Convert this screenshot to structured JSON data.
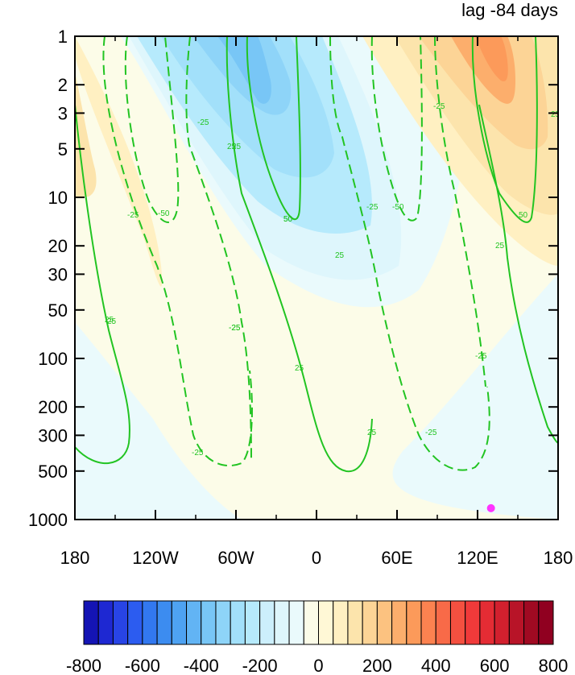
{
  "chart_data": {
    "type": "heatmap",
    "title": "lag -84 days",
    "x_axis": {
      "range": [
        -180,
        180
      ],
      "ticks": [
        -180,
        -120,
        -60,
        0,
        60,
        120,
        180
      ],
      "tick_labels": [
        "180",
        "120W",
        "60W",
        "0",
        "60E",
        "120E",
        "180"
      ]
    },
    "y_axis": {
      "scale": "log",
      "reversed": true,
      "range": [
        1,
        1000
      ],
      "ticks": [
        1,
        2,
        3,
        5,
        10,
        20,
        30,
        50,
        100,
        200,
        300,
        500,
        1000
      ],
      "tick_labels": [
        "1",
        "2",
        "3",
        "5",
        "10",
        "20",
        "30",
        "50",
        "100",
        "200",
        "300",
        "500",
        "1000"
      ]
    },
    "colorbar": {
      "orientation": "horizontal",
      "levels": [
        -800,
        -750,
        -700,
        -650,
        -600,
        -550,
        -500,
        -450,
        -400,
        -350,
        -300,
        -250,
        -200,
        -150,
        -100,
        -50,
        0,
        50,
        100,
        150,
        200,
        250,
        300,
        350,
        400,
        450,
        500,
        550,
        600,
        650,
        700,
        750,
        800
      ],
      "tick_values": [
        -800,
        -600,
        -400,
        -200,
        0,
        200,
        400,
        600,
        800
      ],
      "tick_labels": [
        "-800",
        "-600",
        "-400",
        "-200",
        "0",
        "200",
        "400",
        "600",
        "800"
      ],
      "colors": [
        "#1414b4",
        "#1e28d2",
        "#2844e6",
        "#2c5cf0",
        "#3278f0",
        "#3c8cf0",
        "#4ea2f2",
        "#62b4f4",
        "#78c6f6",
        "#8ed4f8",
        "#a2e0fa",
        "#b6eafc",
        "#cceffc",
        "#def6fc",
        "#eafafc",
        "#fcfce8",
        "#fff8d6",
        "#fff0c2",
        "#fce4ac",
        "#fcd496",
        "#fcc280",
        "#fcae6c",
        "#fc9a5a",
        "#fc8250",
        "#f86a48",
        "#f45040",
        "#f03a3a",
        "#e42c34",
        "#d2202e",
        "#b81428",
        "#a00a22",
        "#900020"
      ]
    },
    "shaded_field": {
      "description_units": "geopotential height anomaly",
      "regions": [
        {
          "value": 25,
          "lon": [
            -180,
            180
          ],
          "p": [
            1000,
            1
          ]
        },
        {
          "value": -25,
          "lon": [
            -180,
            -120
          ],
          "p": [
            1000,
            80
          ]
        },
        {
          "value": -25,
          "lon": [
            -20,
            180
          ],
          "p": [
            1000,
            150
          ]
        },
        {
          "value": 125,
          "lon": [
            -180,
            -110
          ],
          "p": [
            40,
            1
          ]
        },
        {
          "value": -150,
          "lon": [
            -140,
            60
          ],
          "p": [
            50,
            1
          ]
        },
        {
          "value": -275,
          "lon": [
            -80,
            -30
          ],
          "p": [
            15,
            1
          ]
        },
        {
          "value": -375,
          "lon": [
            -65,
            -35
          ],
          "p": [
            3,
            1
          ]
        },
        {
          "value": 175,
          "lon": [
            50,
            180
          ],
          "p": [
            20,
            1
          ]
        },
        {
          "value": 325,
          "lon": [
            90,
            155
          ],
          "p": [
            8,
            1
          ]
        },
        {
          "value": 425,
          "lon": [
            100,
            145
          ],
          "p": [
            3,
            1
          ]
        }
      ]
    },
    "contour_labels": [
      "-25",
      "-50",
      "25",
      "50",
      "-25",
      "25",
      "-25",
      "25",
      "50",
      "-25",
      "25",
      "-50",
      "-25",
      "25",
      "-25",
      "25",
      "25",
      "25",
      "-25",
      "50",
      "25",
      "-25",
      "-25"
    ],
    "marker": {
      "lon": 130,
      "p": 850,
      "color": "#ff33ff"
    }
  }
}
